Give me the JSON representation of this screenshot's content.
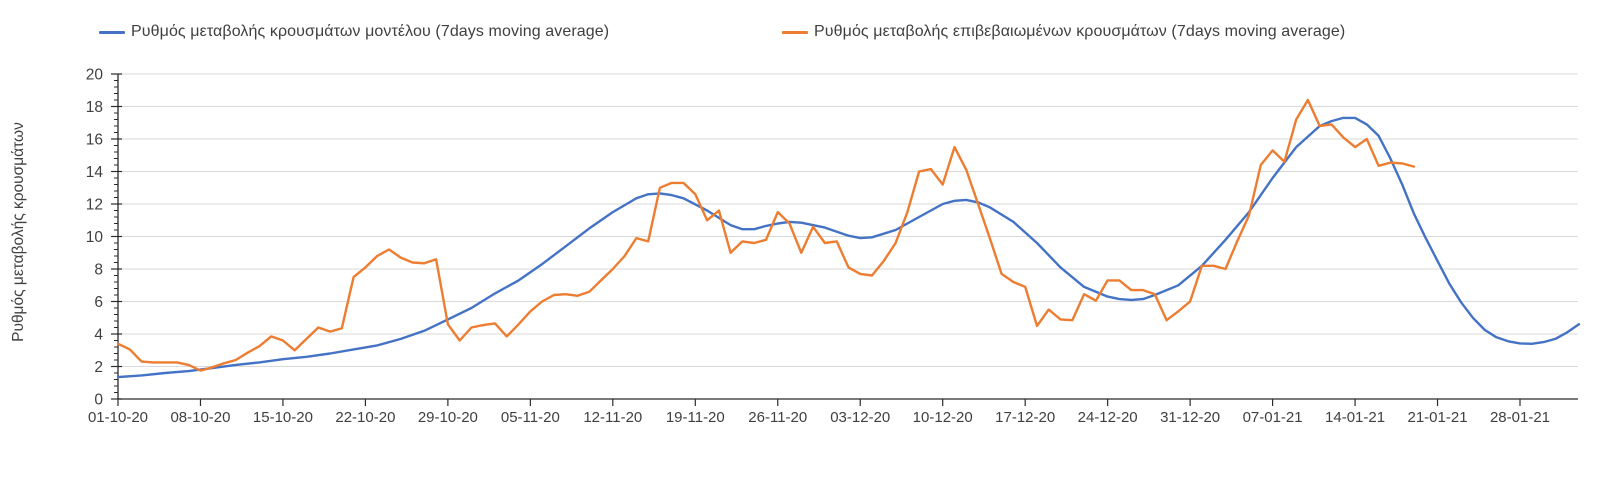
{
  "legend": {
    "items": [
      {
        "label": "Ρυθμός μεταβολής κρουσμάτων μοντέλου (7days moving average)",
        "color": "#4472C4"
      },
      {
        "label": "Ρυθμός μεταβολής επιβεβαιωμένων κρουσμάτων (7days moving average)",
        "color": "#ED7D31"
      }
    ]
  },
  "colors": {
    "grid": "#d9d9d9",
    "axis": "#2b2b2b",
    "tick_text": "#404040",
    "background": "#ffffff"
  },
  "chart_data": {
    "type": "line",
    "title": "",
    "xlabel": "",
    "ylabel": "Ρυθμός μεταβολής κρουσμάτων",
    "ylim": [
      0,
      20
    ],
    "ytick_step": 2,
    "grid": "horizontal gridlines on",
    "legend_position": "top",
    "x_unit": "date (dd-mm-yy), daily data starting 01-10-20 (day 0)",
    "x_tick_days": [
      0,
      7,
      14,
      21,
      28,
      35,
      42,
      49,
      56,
      63,
      70,
      77,
      84,
      91,
      98,
      105,
      112,
      119
    ],
    "x_tick_labels": [
      "01-10-20",
      "08-10-20",
      "15-10-20",
      "22-10-20",
      "29-10-20",
      "05-11-20",
      "12-11-20",
      "19-11-20",
      "26-11-20",
      "03-12-20",
      "10-12-20",
      "17-12-20",
      "24-12-20",
      "31-12-20",
      "07-01-21",
      "14-01-21",
      "21-01-21",
      "28-01-21"
    ],
    "series": [
      {
        "name": "Ρυθμός μεταβολής κρουσμάτων μοντέλου (7days moving average)",
        "color": "#4472C4",
        "points": [
          [
            0,
            1.35
          ],
          [
            2,
            1.45
          ],
          [
            4,
            1.6
          ],
          [
            6,
            1.72
          ],
          [
            8,
            1.9
          ],
          [
            10,
            2.1
          ],
          [
            12,
            2.25
          ],
          [
            14,
            2.45
          ],
          [
            16,
            2.6
          ],
          [
            18,
            2.8
          ],
          [
            20,
            3.05
          ],
          [
            22,
            3.3
          ],
          [
            24,
            3.7
          ],
          [
            26,
            4.2
          ],
          [
            28,
            4.9
          ],
          [
            30,
            5.6
          ],
          [
            32,
            6.5
          ],
          [
            34,
            7.3
          ],
          [
            36,
            8.3
          ],
          [
            38,
            9.4
          ],
          [
            40,
            10.5
          ],
          [
            42,
            11.5
          ],
          [
            44,
            12.35
          ],
          [
            45,
            12.6
          ],
          [
            46,
            12.65
          ],
          [
            47,
            12.55
          ],
          [
            48,
            12.35
          ],
          [
            50,
            11.6
          ],
          [
            52,
            10.7
          ],
          [
            53,
            10.45
          ],
          [
            54,
            10.45
          ],
          [
            55,
            10.65
          ],
          [
            56,
            10.8
          ],
          [
            57,
            10.9
          ],
          [
            58,
            10.85
          ],
          [
            60,
            10.55
          ],
          [
            62,
            10.05
          ],
          [
            63,
            9.9
          ],
          [
            64,
            9.95
          ],
          [
            66,
            10.4
          ],
          [
            68,
            11.2
          ],
          [
            70,
            12.0
          ],
          [
            71,
            12.2
          ],
          [
            72,
            12.25
          ],
          [
            73,
            12.1
          ],
          [
            74,
            11.8
          ],
          [
            76,
            10.9
          ],
          [
            78,
            9.6
          ],
          [
            80,
            8.1
          ],
          [
            82,
            6.9
          ],
          [
            84,
            6.3
          ],
          [
            85,
            6.15
          ],
          [
            86,
            6.1
          ],
          [
            87,
            6.15
          ],
          [
            88,
            6.4
          ],
          [
            90,
            7.0
          ],
          [
            92,
            8.2
          ],
          [
            94,
            9.8
          ],
          [
            96,
            11.5
          ],
          [
            98,
            13.6
          ],
          [
            100,
            15.5
          ],
          [
            102,
            16.8
          ],
          [
            103,
            17.1
          ],
          [
            104,
            17.3
          ],
          [
            105,
            17.3
          ],
          [
            106,
            16.9
          ],
          [
            107,
            16.2
          ],
          [
            108,
            14.8
          ],
          [
            109,
            13.2
          ],
          [
            110,
            11.4
          ],
          [
            111,
            9.9
          ],
          [
            112,
            8.5
          ],
          [
            113,
            7.1
          ],
          [
            114,
            5.95
          ],
          [
            115,
            5.0
          ],
          [
            116,
            4.25
          ],
          [
            117,
            3.8
          ],
          [
            118,
            3.55
          ],
          [
            119,
            3.42
          ],
          [
            120,
            3.4
          ],
          [
            121,
            3.5
          ],
          [
            122,
            3.7
          ],
          [
            123,
            4.1
          ],
          [
            124,
            4.6
          ]
        ]
      },
      {
        "name": "Ρυθμός μεταβολής επιβεβαιωμένων κρουσμάτων (7days moving average)",
        "color": "#ED7D31",
        "points": [
          [
            0,
            3.4
          ],
          [
            1,
            3.05
          ],
          [
            2,
            2.3
          ],
          [
            3,
            2.25
          ],
          [
            4,
            2.25
          ],
          [
            5,
            2.25
          ],
          [
            6,
            2.1
          ],
          [
            7,
            1.75
          ],
          [
            8,
            1.95
          ],
          [
            9,
            2.2
          ],
          [
            10,
            2.4
          ],
          [
            11,
            2.85
          ],
          [
            12,
            3.25
          ],
          [
            13,
            3.85
          ],
          [
            14,
            3.6
          ],
          [
            15,
            3.0
          ],
          [
            16,
            3.7
          ],
          [
            17,
            4.4
          ],
          [
            18,
            4.15
          ],
          [
            19,
            4.35
          ],
          [
            20,
            7.5
          ],
          [
            21,
            8.1
          ],
          [
            22,
            8.8
          ],
          [
            23,
            9.2
          ],
          [
            24,
            8.7
          ],
          [
            25,
            8.4
          ],
          [
            26,
            8.35
          ],
          [
            27,
            8.6
          ],
          [
            28,
            4.6
          ],
          [
            29,
            3.6
          ],
          [
            30,
            4.4
          ],
          [
            31,
            4.55
          ],
          [
            32,
            4.65
          ],
          [
            33,
            3.85
          ],
          [
            34,
            4.6
          ],
          [
            35,
            5.4
          ],
          [
            36,
            6.0
          ],
          [
            37,
            6.4
          ],
          [
            38,
            6.45
          ],
          [
            39,
            6.35
          ],
          [
            40,
            6.6
          ],
          [
            41,
            7.3
          ],
          [
            42,
            8.0
          ],
          [
            43,
            8.8
          ],
          [
            44,
            9.9
          ],
          [
            45,
            9.7
          ],
          [
            46,
            13.0
          ],
          [
            47,
            13.3
          ],
          [
            48,
            13.3
          ],
          [
            49,
            12.6
          ],
          [
            50,
            11.0
          ],
          [
            51,
            11.6
          ],
          [
            52,
            9.0
          ],
          [
            53,
            9.7
          ],
          [
            54,
            9.6
          ],
          [
            55,
            9.8
          ],
          [
            56,
            11.5
          ],
          [
            57,
            10.8
          ],
          [
            58,
            9.0
          ],
          [
            59,
            10.6
          ],
          [
            60,
            9.6
          ],
          [
            61,
            9.7
          ],
          [
            62,
            8.1
          ],
          [
            63,
            7.7
          ],
          [
            64,
            7.6
          ],
          [
            65,
            8.5
          ],
          [
            66,
            9.6
          ],
          [
            67,
            11.5
          ],
          [
            68,
            14.0
          ],
          [
            69,
            14.15
          ],
          [
            70,
            13.2
          ],
          [
            71,
            15.5
          ],
          [
            72,
            14.1
          ],
          [
            73,
            12.0
          ],
          [
            74,
            9.9
          ],
          [
            75,
            7.7
          ],
          [
            76,
            7.2
          ],
          [
            77,
            6.9
          ],
          [
            78,
            4.5
          ],
          [
            79,
            5.5
          ],
          [
            80,
            4.9
          ],
          [
            81,
            4.85
          ],
          [
            82,
            6.45
          ],
          [
            83,
            6.05
          ],
          [
            84,
            7.3
          ],
          [
            85,
            7.3
          ],
          [
            86,
            6.7
          ],
          [
            87,
            6.7
          ],
          [
            88,
            6.45
          ],
          [
            89,
            4.85
          ],
          [
            90,
            5.4
          ],
          [
            91,
            6.0
          ],
          [
            92,
            8.2
          ],
          [
            93,
            8.2
          ],
          [
            94,
            8.0
          ],
          [
            95,
            9.7
          ],
          [
            96,
            11.3
          ],
          [
            97,
            14.4
          ],
          [
            98,
            15.3
          ],
          [
            99,
            14.6
          ],
          [
            100,
            17.2
          ],
          [
            101,
            18.4
          ],
          [
            102,
            16.8
          ],
          [
            103,
            16.9
          ],
          [
            104,
            16.1
          ],
          [
            105,
            15.5
          ],
          [
            106,
            16.0
          ],
          [
            107,
            14.35
          ],
          [
            108,
            14.55
          ],
          [
            109,
            14.5
          ],
          [
            110,
            14.3
          ]
        ]
      }
    ]
  }
}
